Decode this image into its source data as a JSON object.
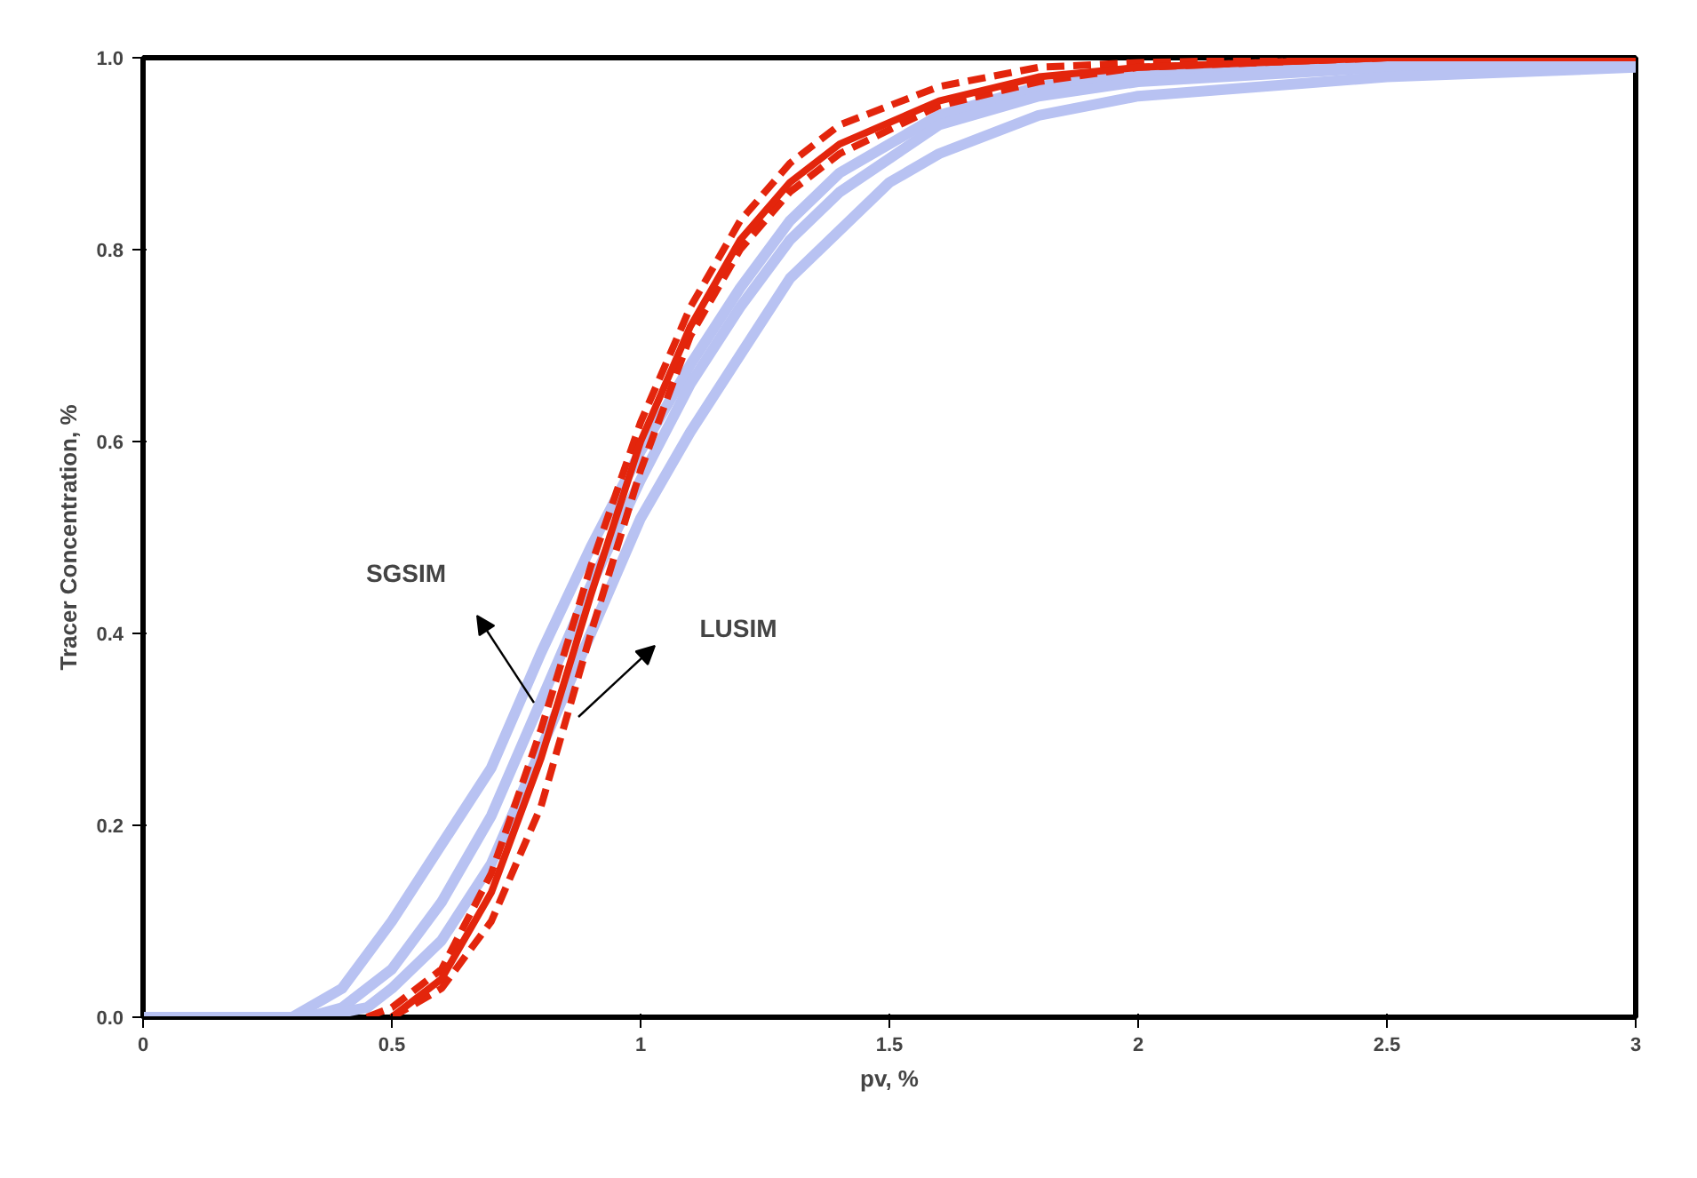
{
  "chart_data": {
    "type": "line",
    "xlabel": "pv, %",
    "ylabel": "Tracer Concentration, %",
    "xlim": [
      0,
      3
    ],
    "ylim": [
      0,
      1
    ],
    "xticks": [
      0,
      0.5,
      1,
      1.5,
      2,
      2.5,
      3
    ],
    "yticks": [
      {
        "value": 0,
        "label": "0.0"
      },
      {
        "value": 0.2,
        "label": "0.2"
      },
      {
        "value": 0.4,
        "label": "0.4"
      },
      {
        "value": 0.6,
        "label": "0.6"
      },
      {
        "value": 0.8,
        "label": "0.8"
      },
      {
        "value": 1,
        "label": "1.0"
      }
    ],
    "grid": false,
    "marker": "none",
    "series": [
      {
        "color": "#b8c2f2",
        "line_style": "solid",
        "x": [
          0,
          0.3,
          0.4,
          0.5,
          0.6,
          0.7,
          0.8,
          0.9,
          1.0,
          1.1,
          1.2,
          1.3,
          1.4,
          1.6,
          1.8,
          2.0,
          2.5,
          3.0
        ],
        "values": [
          0,
          0,
          0.03,
          0.1,
          0.18,
          0.26,
          0.38,
          0.49,
          0.59,
          0.68,
          0.76,
          0.83,
          0.88,
          0.94,
          0.97,
          0.985,
          0.995,
          1.0
        ]
      },
      {
        "color": "#b8c2f2",
        "line_style": "solid",
        "x": [
          0,
          0.33,
          0.4,
          0.5,
          0.6,
          0.7,
          0.8,
          0.9,
          1.0,
          1.1,
          1.2,
          1.3,
          1.4,
          1.6,
          1.8,
          2.0,
          2.5,
          3.0
        ],
        "values": [
          0,
          0,
          0.01,
          0.05,
          0.12,
          0.21,
          0.33,
          0.45,
          0.56,
          0.66,
          0.74,
          0.81,
          0.86,
          0.93,
          0.96,
          0.975,
          0.99,
          0.995
        ]
      },
      {
        "color": "#b8c2f2",
        "line_style": "solid",
        "x": [
          0,
          0.35,
          0.45,
          0.5,
          0.6,
          0.7,
          0.8,
          0.9,
          1.0,
          1.1,
          1.2,
          1.3,
          1.4,
          1.5,
          1.6,
          1.8,
          2.0,
          2.5,
          3.0
        ],
        "values": [
          0,
          0,
          0.01,
          0.03,
          0.08,
          0.16,
          0.28,
          0.4,
          0.52,
          0.61,
          0.69,
          0.77,
          0.82,
          0.87,
          0.9,
          0.94,
          0.96,
          0.98,
          0.99
        ]
      },
      {
        "color": "#e3250c",
        "line_style": "dashed",
        "x": [
          0.45,
          0.5,
          0.6,
          0.7,
          0.8,
          0.9,
          1.0,
          1.1,
          1.2,
          1.3,
          1.4,
          1.6,
          1.8,
          2.0,
          2.5,
          3.0
        ],
        "values": [
          0,
          0.01,
          0.05,
          0.15,
          0.3,
          0.47,
          0.62,
          0.74,
          0.83,
          0.89,
          0.93,
          0.97,
          0.99,
          0.995,
          1,
          1
        ]
      },
      {
        "color": "#e3250c",
        "line_style": "dashed",
        "x": [
          0.5,
          0.6,
          0.7,
          0.8,
          0.9,
          1.0,
          1.1,
          1.2,
          1.3,
          1.4,
          1.6,
          1.8,
          2.0,
          2.5,
          3.0
        ],
        "values": [
          0,
          0.03,
          0.1,
          0.22,
          0.4,
          0.57,
          0.71,
          0.8,
          0.86,
          0.9,
          0.95,
          0.975,
          0.99,
          1,
          1
        ]
      },
      {
        "color": "#e3250c",
        "line_style": "solid",
        "x": [
          0.5,
          0.6,
          0.7,
          0.8,
          0.9,
          1.0,
          1.1,
          1.2,
          1.3,
          1.4,
          1.6,
          1.8,
          2.0,
          2.5,
          3.0
        ],
        "values": [
          0,
          0.04,
          0.13,
          0.27,
          0.44,
          0.6,
          0.72,
          0.81,
          0.87,
          0.91,
          0.955,
          0.98,
          0.99,
          1,
          1
        ]
      }
    ],
    "annotations": [
      "SGSIM",
      "LUSIM"
    ]
  }
}
